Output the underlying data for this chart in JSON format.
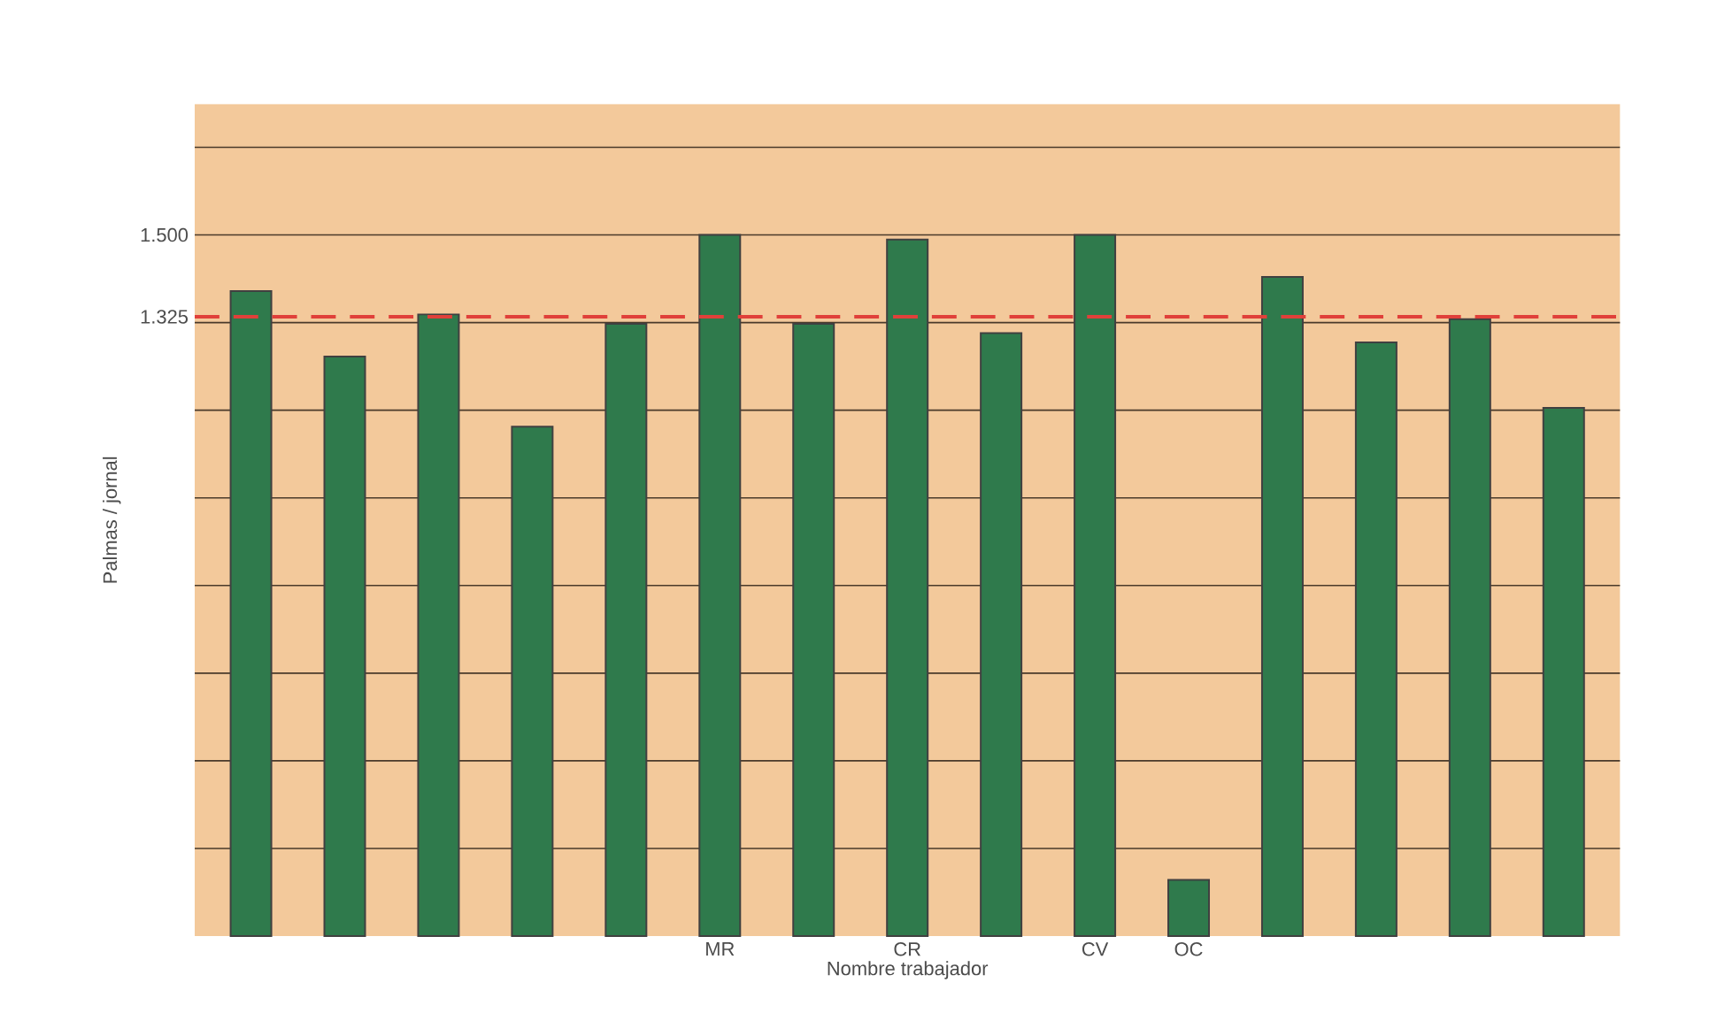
{
  "chart_data": {
    "type": "bar",
    "xlabel": "Nombre trabajador",
    "ylabel": "Palmas / jornal",
    "categories": [
      null,
      null,
      null,
      null,
      null,
      "MR",
      null,
      "CR",
      null,
      "CV",
      "OC",
      null,
      null,
      null,
      null
    ],
    "values": [
      1380,
      1240,
      1330,
      1090,
      1310,
      1500,
      1310,
      1490,
      1290,
      1500,
      120,
      1410,
      1270,
      1320,
      1130
    ],
    "color": "#2f7a4c",
    "ylim": [
      0,
      1780
    ],
    "yticks": [
      {
        "value": 187.5,
        "label": null
      },
      {
        "value": 375,
        "label": null
      },
      {
        "value": 562.5,
        "label": null
      },
      {
        "value": 750,
        "label": null
      },
      {
        "value": 937.5,
        "label": null
      },
      {
        "value": 1125,
        "label": null
      },
      {
        "value": 1312.5,
        "label": null
      },
      {
        "value": 1500,
        "label": "1.500"
      },
      {
        "value": 1687.5,
        "label": null
      }
    ],
    "grid": "y",
    "ref_lines": [
      {
        "axis": "y",
        "value": 1325,
        "label": "1.325",
        "color": "#e0403a",
        "line_style": "dashed"
      }
    ]
  }
}
